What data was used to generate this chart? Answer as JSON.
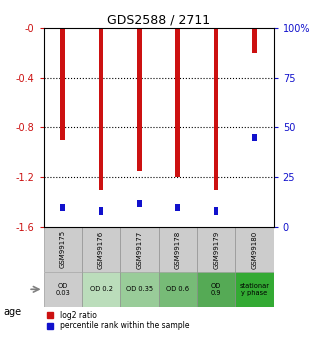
{
  "title": "GDS2588 / 2711",
  "samples": [
    "GSM99175",
    "GSM99176",
    "GSM99177",
    "GSM99178",
    "GSM99179",
    "GSM99180"
  ],
  "log2_ratio": [
    -0.9,
    -1.3,
    -1.15,
    -1.2,
    -1.3,
    -0.2
  ],
  "percentile_rank": [
    10,
    8,
    12,
    10,
    8,
    45
  ],
  "ylim_left": [
    -1.6,
    0.0
  ],
  "ylim_right": [
    0,
    100
  ],
  "yticks_left": [
    0.0,
    -0.4,
    -0.8,
    -1.2,
    -1.6
  ],
  "yticks_right": [
    0,
    25,
    50,
    75,
    100
  ],
  "ytick_labels_right": [
    "0",
    "25",
    "50",
    "75",
    "100%"
  ],
  "red_color": "#cc1111",
  "blue_color": "#1111cc",
  "sample_labels_bg": "#cccccc",
  "age_labels": [
    "OD\n0.03",
    "OD 0.2",
    "OD 0.35",
    "OD 0.6",
    "OD\n0.9",
    "stationar\ny phase"
  ],
  "age_bg_colors": [
    "#cccccc",
    "#bbddbb",
    "#99cc99",
    "#77bb77",
    "#55aa55",
    "#33aa33"
  ],
  "legend_red": "log2 ratio",
  "legend_blue": "percentile rank within the sample",
  "bar_width": 0.12
}
